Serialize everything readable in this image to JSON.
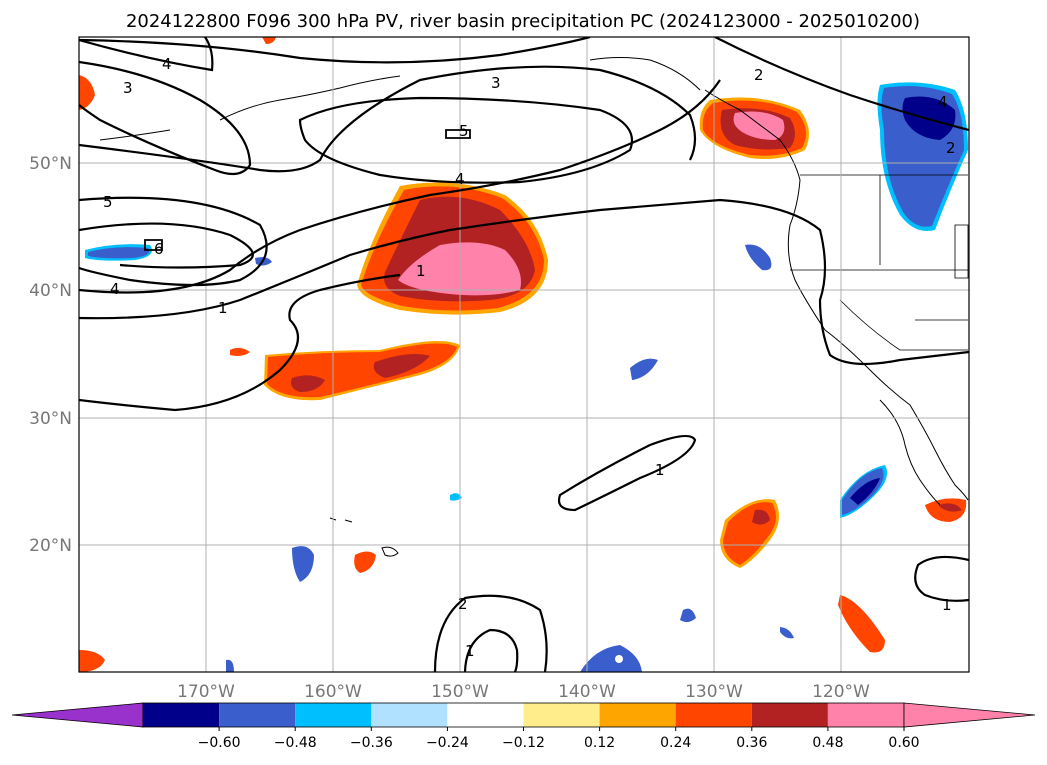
{
  "title": "2024122800 F096 300 hPa PV, river basin precipitation PC (2024123000 - 2025010200)",
  "map": {
    "lon_range": [
      -180,
      -110
    ],
    "lat_range": [
      10,
      60
    ],
    "lat_ticks": [
      {
        "value": 50,
        "label": "50°N"
      },
      {
        "value": 40,
        "label": "40°N"
      },
      {
        "value": 30,
        "label": "30°N"
      },
      {
        "value": 20,
        "label": "20°N"
      }
    ],
    "lon_ticks": [
      {
        "value": -170,
        "label": "170°W"
      },
      {
        "value": -160,
        "label": "160°W"
      },
      {
        "value": -150,
        "label": "150°W"
      },
      {
        "value": -140,
        "label": "140°W"
      },
      {
        "value": -130,
        "label": "130°W"
      },
      {
        "value": -120,
        "label": "120°W"
      }
    ],
    "grid": true,
    "contour_labels": [
      "4",
      "3",
      "3",
      "2",
      "4",
      "5",
      "5",
      "6",
      "4",
      "2",
      "4",
      "1",
      "1",
      "1",
      "2",
      "1"
    ]
  },
  "colorbar": {
    "ticks": [
      "−0.60",
      "−0.48",
      "−0.36",
      "−0.24",
      "−0.12",
      "0.12",
      "0.24",
      "0.36",
      "0.48",
      "0.60"
    ],
    "colors": {
      "under": "#9932cc",
      "bins": [
        "#00008b",
        "#3a5fcd",
        "#00bfff",
        "#b0e2ff",
        "#ffffff",
        "#ffec8b",
        "#ffa500",
        "#ff4500",
        "#b22222",
        "#ff82ab"
      ],
      "over": "#ff82ab"
    }
  }
}
